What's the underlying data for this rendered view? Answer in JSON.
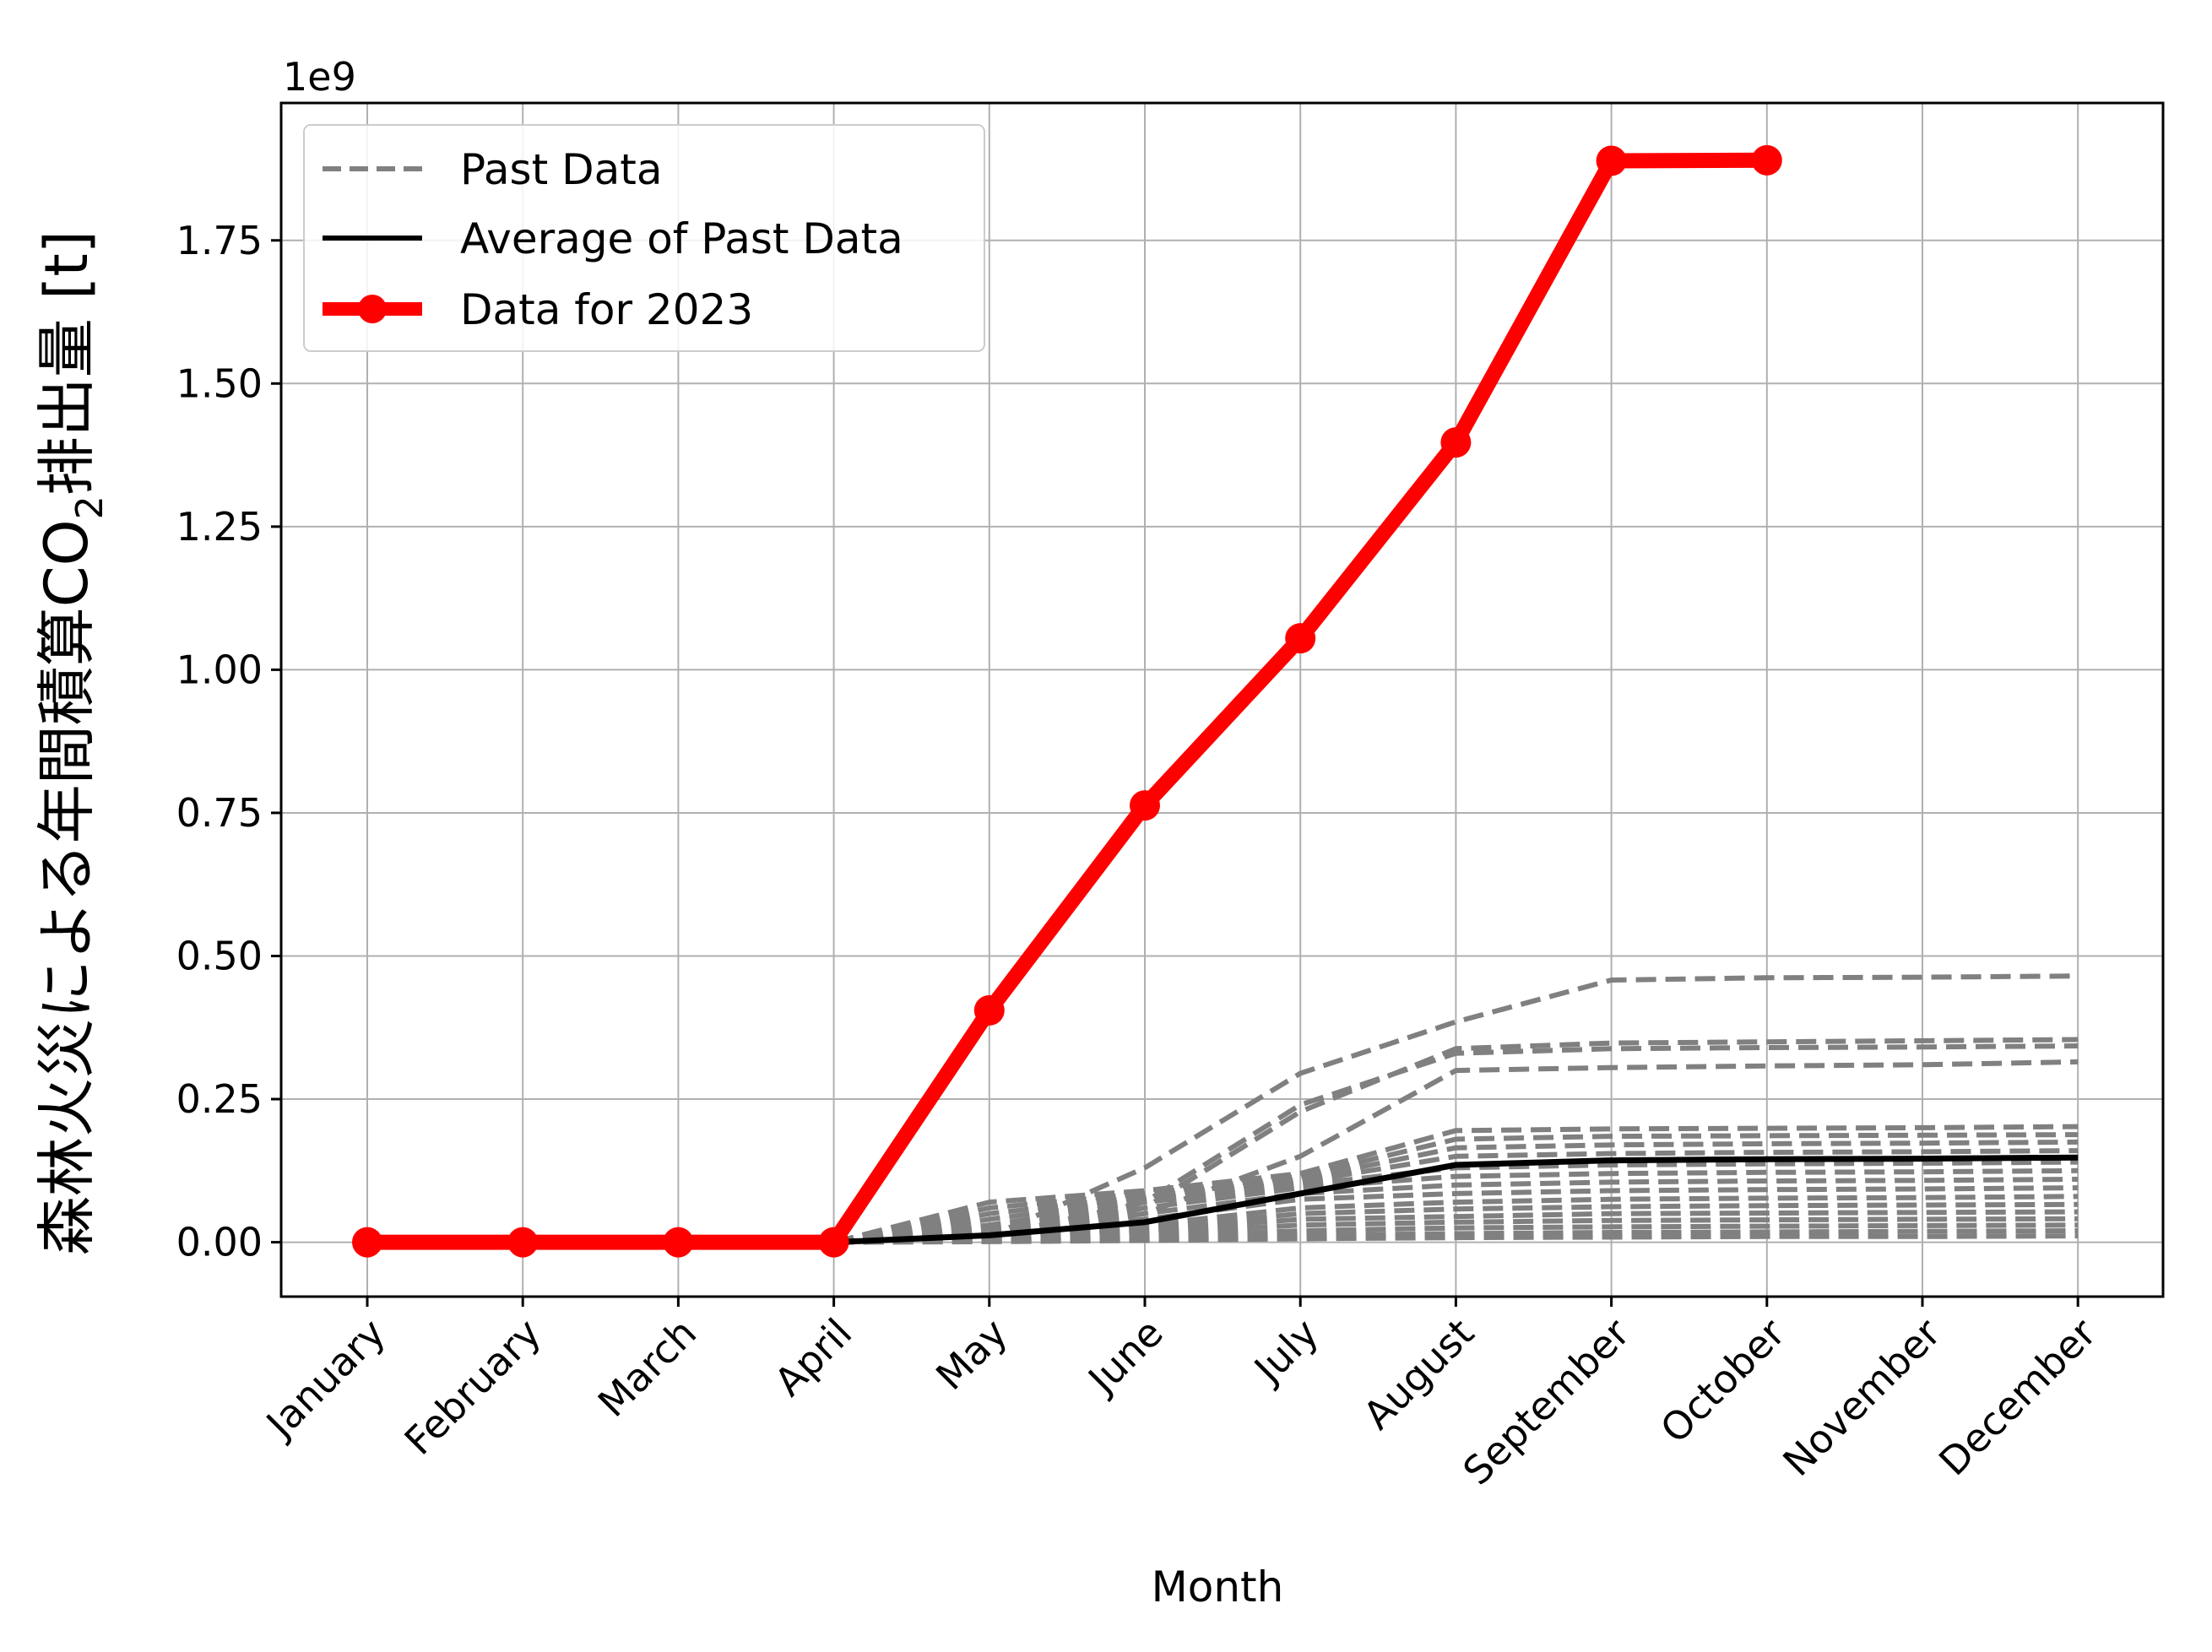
{
  "chart_data": {
    "type": "line",
    "xlabel": "Month",
    "ylabel_main": "森林火災による年間積算CO",
    "ylabel_sub": "2",
    "ylabel_tail": "排出量 [t]",
    "y_offset_label": "1e9",
    "ylim": [
      -0.095,
      1.99
    ],
    "y_ticks": [
      0.0,
      0.25,
      0.5,
      0.75,
      1.0,
      1.25,
      1.5,
      1.75
    ],
    "y_tick_labels": [
      "0.00",
      "0.25",
      "0.50",
      "0.75",
      "1.00",
      "1.25",
      "1.50",
      "1.75"
    ],
    "categories": [
      "January",
      "February",
      "March",
      "April",
      "May",
      "June",
      "July",
      "August",
      "September",
      "October",
      "November",
      "December"
    ],
    "grid": true,
    "legend_position": "top-left",
    "legend": [
      "Past Data",
      "Average of Past Data",
      "Data for 2023"
    ],
    "colors": {
      "past": "#808080",
      "average": "#000000",
      "current": "#ff0000",
      "grid": "#b0b0b0"
    },
    "past_series": [
      {
        "values": [
          0,
          0,
          0,
          0,
          0.01,
          0.13,
          0.295,
          0.385,
          0.458,
          0.462,
          0.463,
          0.465
        ]
      },
      {
        "values": [
          0,
          0,
          0,
          0,
          0.01,
          0.06,
          0.228,
          0.338,
          0.348,
          0.35,
          0.352,
          0.354
        ]
      },
      {
        "values": [
          0,
          0,
          0,
          0,
          0.01,
          0.07,
          0.24,
          0.33,
          0.338,
          0.34,
          0.341,
          0.343
        ]
      },
      {
        "values": [
          0,
          0,
          0,
          0,
          0.01,
          0.05,
          0.15,
          0.3,
          0.305,
          0.308,
          0.31,
          0.315
        ]
      },
      {
        "values": [
          0,
          0,
          0,
          0,
          0.07,
          0.09,
          0.12,
          0.195,
          0.198,
          0.199,
          0.2,
          0.202
        ]
      },
      {
        "values": [
          0,
          0,
          0,
          0,
          0.06,
          0.085,
          0.115,
          0.18,
          0.185,
          0.186,
          0.187,
          0.188
        ]
      },
      {
        "values": [
          0,
          0,
          0,
          0,
          0.05,
          0.08,
          0.11,
          0.165,
          0.17,
          0.172,
          0.173,
          0.175
        ]
      },
      {
        "values": [
          0,
          0,
          0,
          0,
          0.04,
          0.075,
          0.105,
          0.15,
          0.155,
          0.157,
          0.158,
          0.16
        ]
      },
      {
        "values": [
          0,
          0,
          0,
          0,
          0.03,
          0.07,
          0.1,
          0.13,
          0.135,
          0.137,
          0.138,
          0.14
        ]
      },
      {
        "values": [
          0,
          0,
          0,
          0,
          0.025,
          0.06,
          0.095,
          0.115,
          0.12,
          0.122,
          0.123,
          0.125
        ]
      },
      {
        "values": [
          0,
          0,
          0,
          0,
          0.02,
          0.05,
          0.085,
          0.1,
          0.105,
          0.107,
          0.108,
          0.11
        ]
      },
      {
        "values": [
          0,
          0,
          0,
          0,
          0.015,
          0.04,
          0.075,
          0.085,
          0.09,
          0.092,
          0.093,
          0.095
        ]
      },
      {
        "values": [
          0,
          0,
          0,
          0,
          0.01,
          0.03,
          0.06,
          0.07,
          0.075,
          0.077,
          0.078,
          0.08
        ]
      },
      {
        "values": [
          0,
          0,
          0,
          0,
          0.008,
          0.025,
          0.05,
          0.058,
          0.062,
          0.064,
          0.065,
          0.066
        ]
      },
      {
        "values": [
          0,
          0,
          0,
          0,
          0.006,
          0.02,
          0.04,
          0.045,
          0.05,
          0.051,
          0.052,
          0.053
        ]
      },
      {
        "values": [
          0,
          0,
          0,
          0,
          0.004,
          0.015,
          0.03,
          0.035,
          0.038,
          0.039,
          0.04,
          0.041
        ]
      },
      {
        "values": [
          0,
          0,
          0,
          0,
          0.003,
          0.01,
          0.02,
          0.025,
          0.027,
          0.028,
          0.029,
          0.03
        ]
      },
      {
        "values": [
          0,
          0,
          0,
          0,
          0.002,
          0.006,
          0.012,
          0.015,
          0.017,
          0.018,
          0.019,
          0.02
        ]
      },
      {
        "values": [
          0,
          0,
          0,
          0,
          0.001,
          0.003,
          0.006,
          0.008,
          0.009,
          0.01,
          0.01,
          0.011
        ]
      }
    ],
    "average": {
      "name": "Average of Past Data",
      "values": [
        0,
        0,
        0,
        0,
        0.012,
        0.035,
        0.085,
        0.135,
        0.143,
        0.145,
        0.146,
        0.148
      ]
    },
    "current": {
      "name": "Data for 2023",
      "values": [
        0,
        0,
        0,
        0,
        0.405,
        0.763,
        1.055,
        1.397,
        1.889,
        1.89
      ]
    }
  }
}
